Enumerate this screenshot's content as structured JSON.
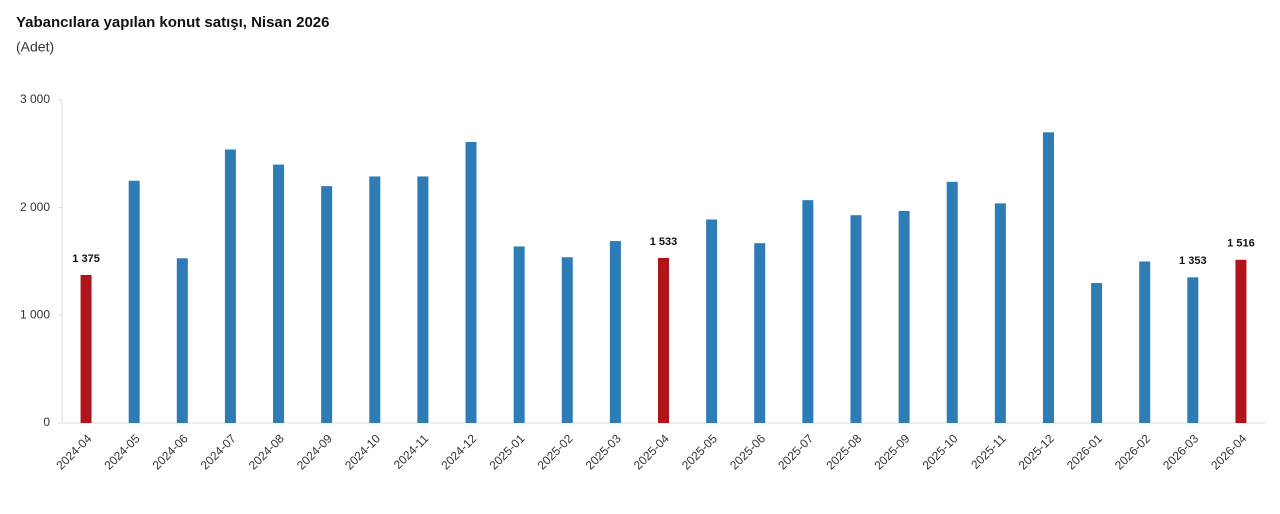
{
  "chart_data": {
    "type": "bar",
    "title": "Yabancılara yapılan konut satışı, Nisan 2026",
    "subtitle": "(Adet)",
    "categories": [
      "2024-04",
      "2024-05",
      "2024-06",
      "2024-07",
      "2024-08",
      "2024-09",
      "2024-10",
      "2024-11",
      "2024-12",
      "2025-01",
      "2025-02",
      "2025-03",
      "2025-04",
      "2025-05",
      "2025-06",
      "2025-07",
      "2025-08",
      "2025-09",
      "2025-10",
      "2025-11",
      "2025-12",
      "2026-01",
      "2026-02",
      "2026-03",
      "2026-04"
    ],
    "values": [
      1375,
      2250,
      1530,
      2540,
      2400,
      2200,
      2290,
      2290,
      2610,
      1640,
      1540,
      1690,
      1533,
      1890,
      1670,
      2070,
      1930,
      1970,
      2240,
      2040,
      2700,
      1300,
      1500,
      1353,
      1516
    ],
    "value_labels": [
      "1 375",
      null,
      null,
      null,
      null,
      null,
      null,
      null,
      null,
      null,
      null,
      null,
      "1 533",
      null,
      null,
      null,
      null,
      null,
      null,
      null,
      null,
      null,
      null,
      "1 353",
      "1 516"
    ],
    "colors": [
      "#b0151b",
      "#2e7cb6",
      "#2e7cb6",
      "#2e7cb6",
      "#2e7cb6",
      "#2e7cb6",
      "#2e7cb6",
      "#2e7cb6",
      "#2e7cb6",
      "#2e7cb6",
      "#2e7cb6",
      "#2e7cb6",
      "#b0151b",
      "#2e7cb6",
      "#2e7cb6",
      "#2e7cb6",
      "#2e7cb6",
      "#2e7cb6",
      "#2e7cb6",
      "#2e7cb6",
      "#2e7cb6",
      "#2e7cb6",
      "#2e7cb6",
      "#2e7cb6",
      "#b0151b"
    ],
    "ylim": [
      0,
      3000
    ],
    "yticks": [
      0,
      {
        "value": 1000,
        "label": "1 000"
      },
      {
        "value": 2000,
        "label": "2 000"
      },
      {
        "value": 3000,
        "label": "3 000"
      }
    ],
    "grid": false
  }
}
